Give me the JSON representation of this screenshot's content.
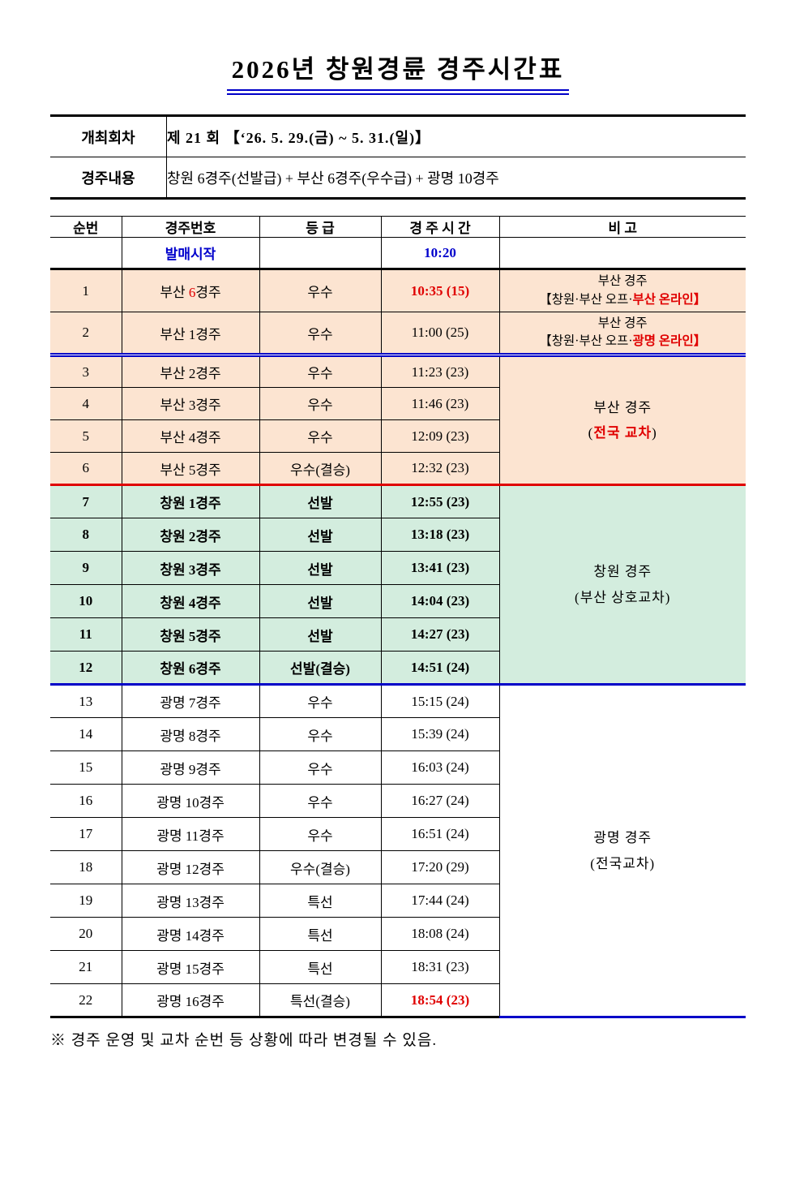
{
  "page": {
    "title": "2026년 창원경륜 경주시간표",
    "footnote": "※ 경주 운영 및 교차 순번 등 상황에 따라 변경될 수 있음."
  },
  "info": {
    "rows": [
      {
        "label": "개최회차",
        "value": "제 21 회 【‘26. 5. 29.(금) ~ 5. 31.(일)】"
      },
      {
        "label": "경주내용",
        "value": "창원 6경주(선발급) + 부산 6경주(우수급) + 광명 10경주"
      }
    ]
  },
  "colors": {
    "peach_bg": "#FCE4D1",
    "green_bg": "#D3EDDE",
    "header_gray": "#D9D9D9",
    "blue_text": "#0000CC",
    "red_text": "#E00000",
    "line_blue": "#0000C8",
    "line_red": "#E00000"
  },
  "table": {
    "headers": [
      "순번",
      "경주번호",
      "등 급",
      "경 주 시 간",
      "비  고"
    ],
    "sale_row": {
      "label": "발매시작",
      "time": "10:20"
    },
    "rows": [
      {
        "no": "1",
        "group": "b1",
        "race": [
          {
            "t": "부산 "
          },
          {
            "t": "6",
            "r": true
          },
          {
            "t": "경주"
          }
        ],
        "grade": "우수",
        "time": [
          {
            "t": "10:35 (15)",
            "r": true,
            "b": true
          }
        ],
        "sep": "thin",
        "note": {
          "rowspan": 1,
          "small": true,
          "sep": "thin",
          "lines": [
            [
              {
                "t": "부산 경주"
              }
            ],
            [
              {
                "t": "【창원·부산 오프·"
              },
              {
                "t": "부산 온라인】",
                "r": true,
                "b": true
              }
            ]
          ]
        }
      },
      {
        "no": "2",
        "group": "b1",
        "race": [
          {
            "t": "부산 1경주"
          }
        ],
        "grade": "우수",
        "time": [
          {
            "t": "11:00 (25)"
          }
        ],
        "sep": "dbl",
        "note": {
          "rowspan": 1,
          "small": true,
          "sep": "dbl",
          "lines": [
            [
              {
                "t": "부산 경주"
              }
            ],
            [
              {
                "t": "【창원·부산 오프·"
              },
              {
                "t": "광명 온라인】",
                "r": true,
                "b": true
              }
            ]
          ]
        }
      },
      {
        "no": "3",
        "group": "b2",
        "race": [
          {
            "t": "부산 2경주"
          }
        ],
        "grade": "우수",
        "time": [
          {
            "t": "11:23 (23)"
          }
        ],
        "sep": "thin",
        "note": {
          "rowspan": 4,
          "sep": "red",
          "lines": [
            [
              {
                "t": "부산 경주"
              }
            ],
            [
              {
                "t": "("
              },
              {
                "t": "전국 교차",
                "r": true,
                "b": true
              },
              {
                "t": ")"
              }
            ]
          ]
        }
      },
      {
        "no": "4",
        "group": "b2",
        "race": [
          {
            "t": "부산 3경주"
          }
        ],
        "grade": "우수",
        "time": [
          {
            "t": "11:46 (23)"
          }
        ],
        "sep": "thin"
      },
      {
        "no": "5",
        "group": "b2",
        "race": [
          {
            "t": "부산 4경주"
          }
        ],
        "grade": "우수",
        "time": [
          {
            "t": "12:09 (23)"
          }
        ],
        "sep": "thin"
      },
      {
        "no": "6",
        "group": "b2",
        "race": [
          {
            "t": "부산 5경주"
          }
        ],
        "grade": "우수(결승)",
        "time": [
          {
            "t": "12:32 (23)"
          }
        ],
        "sep": "red"
      },
      {
        "no": "7",
        "group": "cw",
        "race": [
          {
            "t": "창원 1경주"
          }
        ],
        "grade": "선발",
        "time": [
          {
            "t": "12:55 (23)"
          }
        ],
        "sep": "thin",
        "note": {
          "rowspan": 6,
          "sep": "blue",
          "lines": [
            [
              {
                "t": "창원 경주"
              }
            ],
            [
              {
                "t": "(부산 상호교차)"
              }
            ]
          ]
        }
      },
      {
        "no": "8",
        "group": "cw",
        "race": [
          {
            "t": "창원 2경주"
          }
        ],
        "grade": "선발",
        "time": [
          {
            "t": "13:18 (23)"
          }
        ],
        "sep": "thin"
      },
      {
        "no": "9",
        "group": "cw",
        "race": [
          {
            "t": "창원 3경주"
          }
        ],
        "grade": "선발",
        "time": [
          {
            "t": "13:41 (23)"
          }
        ],
        "sep": "thin"
      },
      {
        "no": "10",
        "group": "cw",
        "race": [
          {
            "t": "창원 4경주"
          }
        ],
        "grade": "선발",
        "time": [
          {
            "t": "14:04 (23)"
          }
        ],
        "sep": "thin"
      },
      {
        "no": "11",
        "group": "cw",
        "race": [
          {
            "t": "창원 5경주"
          }
        ],
        "grade": "선발",
        "time": [
          {
            "t": "14:27 (23)"
          }
        ],
        "sep": "thin"
      },
      {
        "no": "12",
        "group": "cw",
        "race": [
          {
            "t": "창원 6경주"
          }
        ],
        "grade": "선발(결승)",
        "time": [
          {
            "t": "14:51 (24)"
          }
        ],
        "sep": "blue"
      },
      {
        "no": "13",
        "group": "gm",
        "race": [
          {
            "t": "광명 7경주"
          }
        ],
        "grade": "우수",
        "time": [
          {
            "t": "15:15 (24)"
          }
        ],
        "sep": "thin",
        "note": {
          "rowspan": 10,
          "sep": "blue",
          "lines": [
            [
              {
                "t": "광명 경주"
              }
            ],
            [
              {
                "t": "(전국교차)"
              }
            ]
          ]
        }
      },
      {
        "no": "14",
        "group": "gm",
        "race": [
          {
            "t": "광명 8경주"
          }
        ],
        "grade": "우수",
        "time": [
          {
            "t": "15:39 (24)"
          }
        ],
        "sep": "thin"
      },
      {
        "no": "15",
        "group": "gm",
        "race": [
          {
            "t": "광명 9경주"
          }
        ],
        "grade": "우수",
        "time": [
          {
            "t": "16:03 (24)"
          }
        ],
        "sep": "thin"
      },
      {
        "no": "16",
        "group": "gm",
        "race": [
          {
            "t": "광명 10경주"
          }
        ],
        "grade": "우수",
        "time": [
          {
            "t": "16:27 (24)"
          }
        ],
        "sep": "thin"
      },
      {
        "no": "17",
        "group": "gm",
        "race": [
          {
            "t": "광명 11경주"
          }
        ],
        "grade": "우수",
        "time": [
          {
            "t": "16:51 (24)"
          }
        ],
        "sep": "thin"
      },
      {
        "no": "18",
        "group": "gm",
        "race": [
          {
            "t": "광명 12경주"
          }
        ],
        "grade": "우수(결승)",
        "time": [
          {
            "t": "17:20 (29)"
          }
        ],
        "sep": "thin"
      },
      {
        "no": "19",
        "group": "gm",
        "race": [
          {
            "t": "광명 13경주"
          }
        ],
        "grade": "특선",
        "time": [
          {
            "t": "17:44 (24)"
          }
        ],
        "sep": "thin"
      },
      {
        "no": "20",
        "group": "gm",
        "race": [
          {
            "t": "광명 14경주"
          }
        ],
        "grade": "특선",
        "time": [
          {
            "t": "18:08 (24)"
          }
        ],
        "sep": "thin"
      },
      {
        "no": "21",
        "group": "gm",
        "race": [
          {
            "t": "광명 15경주"
          }
        ],
        "grade": "특선",
        "time": [
          {
            "t": "18:31 (23)"
          }
        ],
        "sep": "thin"
      },
      {
        "no": "22",
        "group": "gm",
        "race": [
          {
            "t": "광명 16경주"
          }
        ],
        "grade": "특선(결승)",
        "time": [
          {
            "t": "18:54 (23)",
            "r": true,
            "b": true
          }
        ],
        "sep": "black"
      }
    ]
  }
}
